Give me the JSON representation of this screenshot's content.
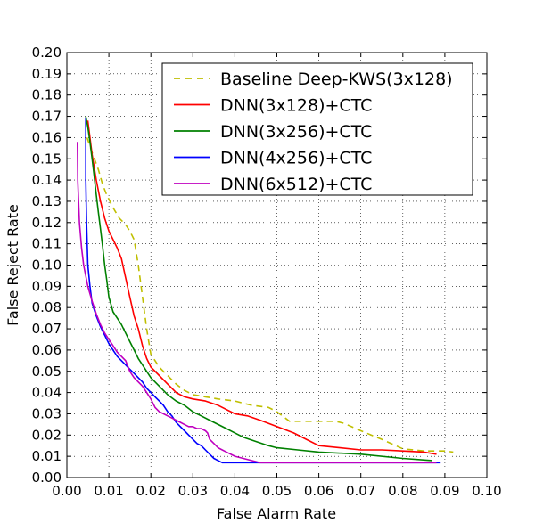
{
  "chart_data": {
    "type": "line",
    "title": "",
    "xlabel": "False Alarm Rate",
    "ylabel": "False Reject Rate",
    "xlim": [
      0.0,
      0.1
    ],
    "ylim": [
      0.0,
      0.2
    ],
    "grid": true,
    "legend_position": "top-right",
    "x_ticks": [
      "0.00",
      "0.01",
      "0.02",
      "0.03",
      "0.04",
      "0.05",
      "0.06",
      "0.07",
      "0.08",
      "0.09",
      "0.10"
    ],
    "y_ticks": [
      "0.00",
      "0.01",
      "0.02",
      "0.03",
      "0.04",
      "0.05",
      "0.06",
      "0.07",
      "0.08",
      "0.09",
      "0.10",
      "0.11",
      "0.12",
      "0.13",
      "0.14",
      "0.15",
      "0.16",
      "0.17",
      "0.18",
      "0.19",
      "0.20"
    ],
    "series": [
      {
        "name": "Baseline Deep-KWS(3x128)",
        "color": "#bfbf00",
        "dashed": true,
        "x": [
          0.0048,
          0.006,
          0.0075,
          0.0085,
          0.0095,
          0.011,
          0.0125,
          0.014,
          0.015,
          0.016,
          0.017,
          0.018,
          0.019,
          0.0195,
          0.02,
          0.021,
          0.022,
          0.024,
          0.026,
          0.028,
          0.03,
          0.033,
          0.036,
          0.04,
          0.044,
          0.048,
          0.05,
          0.052,
          0.053,
          0.055,
          0.058,
          0.06,
          0.064,
          0.066,
          0.07,
          0.075,
          0.08,
          0.085,
          0.09,
          0.092
        ],
        "y": [
          0.16,
          0.153,
          0.145,
          0.138,
          0.133,
          0.127,
          0.122,
          0.119,
          0.116,
          0.112,
          0.1,
          0.085,
          0.07,
          0.064,
          0.058,
          0.055,
          0.052,
          0.048,
          0.044,
          0.041,
          0.039,
          0.038,
          0.037,
          0.036,
          0.034,
          0.033,
          0.031,
          0.028,
          0.0265,
          0.0265,
          0.0265,
          0.0265,
          0.0265,
          0.0255,
          0.022,
          0.018,
          0.0135,
          0.0125,
          0.0125,
          0.012
        ]
      },
      {
        "name": "DNN(3x128)+CTC",
        "color": "#ff0000",
        "dashed": false,
        "x": [
          0.005,
          0.0055,
          0.006,
          0.007,
          0.008,
          0.009,
          0.01,
          0.011,
          0.012,
          0.013,
          0.014,
          0.015,
          0.016,
          0.017,
          0.018,
          0.019,
          0.02,
          0.022,
          0.024,
          0.026,
          0.028,
          0.03,
          0.033,
          0.036,
          0.038,
          0.04,
          0.043,
          0.046,
          0.05,
          0.054,
          0.057,
          0.06,
          0.065,
          0.07,
          0.075,
          0.08,
          0.085,
          0.088
        ],
        "y": [
          0.168,
          0.16,
          0.152,
          0.14,
          0.13,
          0.122,
          0.116,
          0.112,
          0.108,
          0.103,
          0.094,
          0.085,
          0.076,
          0.07,
          0.062,
          0.056,
          0.052,
          0.048,
          0.044,
          0.04,
          0.038,
          0.037,
          0.036,
          0.034,
          0.032,
          0.03,
          0.029,
          0.027,
          0.024,
          0.021,
          0.018,
          0.015,
          0.014,
          0.013,
          0.013,
          0.0125,
          0.012,
          0.011
        ]
      },
      {
        "name": "DNN(3x256)+CTC",
        "color": "#008000",
        "dashed": false,
        "x": [
          0.0045,
          0.005,
          0.0055,
          0.006,
          0.0065,
          0.007,
          0.0075,
          0.008,
          0.0085,
          0.009,
          0.0095,
          0.01,
          0.011,
          0.012,
          0.013,
          0.014,
          0.015,
          0.016,
          0.017,
          0.018,
          0.019,
          0.02,
          0.022,
          0.024,
          0.026,
          0.028,
          0.03,
          0.032,
          0.034,
          0.036,
          0.038,
          0.04,
          0.042,
          0.045,
          0.048,
          0.05,
          0.055,
          0.06,
          0.07,
          0.08,
          0.087
        ],
        "y": [
          0.17,
          0.165,
          0.158,
          0.15,
          0.142,
          0.133,
          0.125,
          0.117,
          0.109,
          0.1,
          0.093,
          0.085,
          0.078,
          0.075,
          0.072,
          0.068,
          0.064,
          0.06,
          0.056,
          0.053,
          0.05,
          0.047,
          0.043,
          0.039,
          0.036,
          0.034,
          0.031,
          0.029,
          0.027,
          0.025,
          0.023,
          0.021,
          0.019,
          0.017,
          0.015,
          0.014,
          0.013,
          0.012,
          0.011,
          0.009,
          0.008
        ]
      },
      {
        "name": "DNN(4x256)+CTC",
        "color": "#0000ff",
        "dashed": false,
        "x": [
          0.0045,
          0.0045,
          0.0047,
          0.005,
          0.0055,
          0.006,
          0.007,
          0.008,
          0.009,
          0.01,
          0.011,
          0.012,
          0.013,
          0.014,
          0.015,
          0.016,
          0.017,
          0.018,
          0.019,
          0.02,
          0.021,
          0.022,
          0.023,
          0.024,
          0.025,
          0.026,
          0.027,
          0.028,
          0.029,
          0.03,
          0.031,
          0.032,
          0.033,
          0.034,
          0.035,
          0.036,
          0.037,
          0.038,
          0.04,
          0.045,
          0.05,
          0.06,
          0.07,
          0.08,
          0.089
        ],
        "y": [
          0.169,
          0.14,
          0.12,
          0.1,
          0.09,
          0.082,
          0.076,
          0.071,
          0.067,
          0.063,
          0.06,
          0.057,
          0.055,
          0.053,
          0.051,
          0.049,
          0.047,
          0.045,
          0.042,
          0.04,
          0.038,
          0.036,
          0.034,
          0.031,
          0.029,
          0.026,
          0.024,
          0.022,
          0.02,
          0.018,
          0.016,
          0.015,
          0.013,
          0.011,
          0.009,
          0.008,
          0.007,
          0.007,
          0.007,
          0.007,
          0.007,
          0.007,
          0.007,
          0.007,
          0.007
        ]
      },
      {
        "name": "DNN(6x512)+CTC",
        "color": "#bf00bf",
        "dashed": false,
        "x": [
          0.0025,
          0.0026,
          0.003,
          0.0035,
          0.004,
          0.005,
          0.006,
          0.007,
          0.008,
          0.009,
          0.01,
          0.011,
          0.012,
          0.013,
          0.014,
          0.015,
          0.016,
          0.017,
          0.018,
          0.019,
          0.02,
          0.021,
          0.022,
          0.023,
          0.024,
          0.025,
          0.026,
          0.027,
          0.028,
          0.029,
          0.03,
          0.031,
          0.032,
          0.033,
          0.0335,
          0.034,
          0.035,
          0.036,
          0.038,
          0.04,
          0.042,
          0.044,
          0.046,
          0.05,
          0.06,
          0.07,
          0.08,
          0.088
        ],
        "y": [
          0.158,
          0.14,
          0.12,
          0.108,
          0.1,
          0.09,
          0.083,
          0.077,
          0.072,
          0.068,
          0.065,
          0.062,
          0.059,
          0.057,
          0.055,
          0.05,
          0.047,
          0.045,
          0.043,
          0.04,
          0.037,
          0.033,
          0.031,
          0.03,
          0.029,
          0.028,
          0.027,
          0.026,
          0.025,
          0.024,
          0.024,
          0.023,
          0.023,
          0.022,
          0.021,
          0.018,
          0.016,
          0.014,
          0.012,
          0.01,
          0.009,
          0.008,
          0.007,
          0.007,
          0.007,
          0.007,
          0.007,
          0.007
        ]
      }
    ]
  }
}
